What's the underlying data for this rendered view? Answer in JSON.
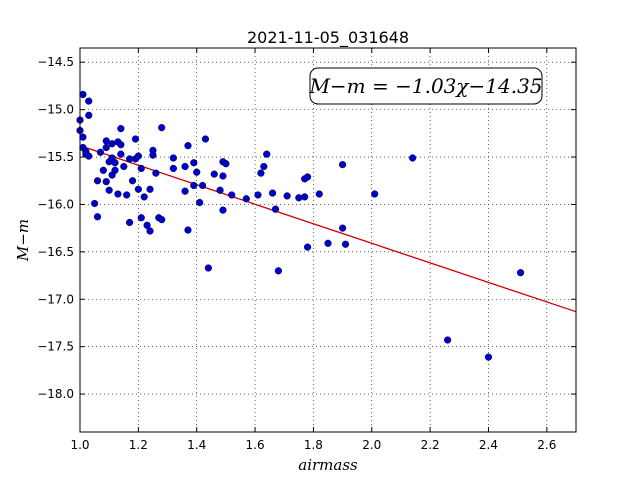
{
  "chart_data": {
    "type": "scatter",
    "title": "2021-11-05_031648",
    "xlabel": "airmass",
    "ylabel": "M−m",
    "xlim": [
      1.0,
      2.7
    ],
    "ylim": [
      -18.4,
      -14.35
    ],
    "y_inverted": true,
    "grid": true,
    "xticks": [
      "1.0",
      "1.2",
      "1.4",
      "1.6",
      "1.8",
      "2.0",
      "2.2",
      "2.4",
      "2.6"
    ],
    "yticks": [
      "−14.5",
      "−15.0",
      "−15.5",
      "−16.0",
      "−16.5",
      "−17.0",
      "−17.5",
      "−18.0"
    ],
    "ytick_values": [
      -14.5,
      -15.0,
      -15.5,
      -16.0,
      -16.5,
      -17.0,
      -17.5,
      -18.0
    ],
    "xtick_values": [
      1.0,
      1.2,
      1.4,
      1.6,
      1.8,
      2.0,
      2.2,
      2.4,
      2.6
    ],
    "annotation": "M−m = −1.03χ−14.35",
    "annotation_position": "top-right",
    "fit": {
      "slope": -1.03,
      "intercept": -14.35,
      "color": "#cc0000"
    },
    "point_color": "#0000cc",
    "points": [
      [
        1.0,
        -15.11
      ],
      [
        1.0,
        -15.22
      ],
      [
        1.01,
        -15.29
      ],
      [
        1.01,
        -14.84
      ],
      [
        1.01,
        -15.4
      ],
      [
        1.02,
        -15.44
      ],
      [
        1.03,
        -15.06
      ],
      [
        1.03,
        -14.91
      ],
      [
        1.02,
        -15.47
      ],
      [
        1.03,
        -15.49
      ],
      [
        1.05,
        -15.99
      ],
      [
        1.06,
        -16.13
      ],
      [
        1.06,
        -15.75
      ],
      [
        1.07,
        -15.45
      ],
      [
        1.08,
        -15.64
      ],
      [
        1.09,
        -15.76
      ],
      [
        1.09,
        -15.4
      ],
      [
        1.09,
        -15.33
      ],
      [
        1.1,
        -15.55
      ],
      [
        1.1,
        -15.85
      ],
      [
        1.11,
        -15.36
      ],
      [
        1.11,
        -15.51
      ],
      [
        1.11,
        -15.69
      ],
      [
        1.12,
        -15.64
      ],
      [
        1.12,
        -15.56
      ],
      [
        1.13,
        -15.34
      ],
      [
        1.13,
        -15.89
      ],
      [
        1.14,
        -15.2
      ],
      [
        1.14,
        -15.47
      ],
      [
        1.14,
        -15.37
      ],
      [
        1.15,
        -15.6
      ],
      [
        1.16,
        -15.9
      ],
      [
        1.17,
        -15.52
      ],
      [
        1.17,
        -16.19
      ],
      [
        1.18,
        -15.75
      ],
      [
        1.19,
        -15.31
      ],
      [
        1.19,
        -15.52
      ],
      [
        1.2,
        -15.84
      ],
      [
        1.2,
        -15.49
      ],
      [
        1.21,
        -15.62
      ],
      [
        1.21,
        -16.14
      ],
      [
        1.22,
        -15.92
      ],
      [
        1.23,
        -16.22
      ],
      [
        1.24,
        -16.28
      ],
      [
        1.24,
        -15.84
      ],
      [
        1.25,
        -15.43
      ],
      [
        1.25,
        -15.48
      ],
      [
        1.26,
        -15.67
      ],
      [
        1.27,
        -16.14
      ],
      [
        1.28,
        -15.19
      ],
      [
        1.28,
        -16.16
      ],
      [
        1.32,
        -15.51
      ],
      [
        1.32,
        -15.62
      ],
      [
        1.36,
        -15.6
      ],
      [
        1.36,
        -15.86
      ],
      [
        1.37,
        -15.38
      ],
      [
        1.37,
        -16.27
      ],
      [
        1.39,
        -15.56
      ],
      [
        1.39,
        -15.8
      ],
      [
        1.4,
        -15.66
      ],
      [
        1.41,
        -15.98
      ],
      [
        1.42,
        -15.8
      ],
      [
        1.43,
        -15.31
      ],
      [
        1.44,
        -16.67
      ],
      [
        1.46,
        -15.68
      ],
      [
        1.48,
        -15.85
      ],
      [
        1.49,
        -15.55
      ],
      [
        1.49,
        -15.7
      ],
      [
        1.49,
        -16.06
      ],
      [
        1.5,
        -15.57
      ],
      [
        1.52,
        -15.9
      ],
      [
        1.57,
        -15.94
      ],
      [
        1.61,
        -15.9
      ],
      [
        1.62,
        -15.67
      ],
      [
        1.63,
        -15.6
      ],
      [
        1.64,
        -15.47
      ],
      [
        1.66,
        -15.88
      ],
      [
        1.67,
        -16.05
      ],
      [
        1.68,
        -16.7
      ],
      [
        1.71,
        -15.91
      ],
      [
        1.75,
        -15.93
      ],
      [
        1.77,
        -15.73
      ],
      [
        1.77,
        -15.92
      ],
      [
        1.78,
        -15.71
      ],
      [
        1.78,
        -16.45
      ],
      [
        1.82,
        -15.89
      ],
      [
        1.85,
        -16.41
      ],
      [
        1.9,
        -16.25
      ],
      [
        1.9,
        -15.58
      ],
      [
        1.91,
        -16.42
      ],
      [
        2.01,
        -15.89
      ],
      [
        2.14,
        -15.51
      ],
      [
        2.26,
        -17.43
      ],
      [
        2.4,
        -17.61
      ],
      [
        2.51,
        -16.72
      ]
    ]
  }
}
